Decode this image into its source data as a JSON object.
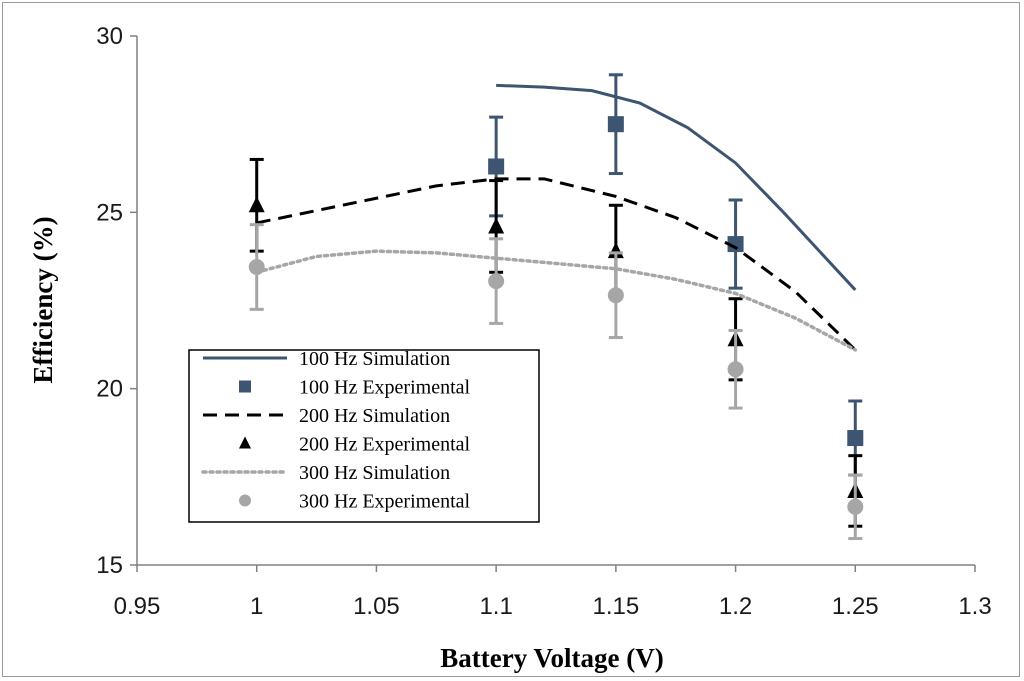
{
  "chart_data": {
    "type": "line",
    "title": "",
    "xlabel": "Battery Voltage (V)",
    "ylabel": "Efficiency (%)",
    "xlim": [
      0.95,
      1.3
    ],
    "ylim": [
      15,
      30
    ],
    "xticks": [
      0.95,
      1,
      1.05,
      1.1,
      1.15,
      1.2,
      1.25,
      1.3
    ],
    "xtick_labels": [
      "0.95",
      "1",
      "1.05",
      "1.1",
      "1.15",
      "1.2",
      "1.25",
      "1.3"
    ],
    "yticks": [
      15,
      20,
      25,
      30
    ],
    "ytick_labels": [
      "15",
      "20",
      "25",
      "30"
    ],
    "grid": false,
    "legend_position": "bottom-left",
    "series": [
      {
        "name": "100 Hz Simulation",
        "kind": "line",
        "style": "solid",
        "color": "#3d5570",
        "x": [
          1.1,
          1.12,
          1.14,
          1.16,
          1.18,
          1.2,
          1.22,
          1.235,
          1.25
        ],
        "y": [
          28.6,
          28.55,
          28.45,
          28.1,
          27.4,
          26.4,
          25.0,
          23.9,
          22.8
        ]
      },
      {
        "name": "100 Hz Experimental",
        "kind": "points",
        "marker": "square",
        "color": "#3d5570",
        "x": [
          1.1,
          1.15,
          1.2,
          1.25
        ],
        "y": [
          26.3,
          27.5,
          24.1,
          18.6
        ],
        "err": [
          1.4,
          1.4,
          1.25,
          1.05
        ]
      },
      {
        "name": "200 Hz Simulation",
        "kind": "line",
        "style": "dashed",
        "color": "#000000",
        "x": [
          1.0,
          1.025,
          1.05,
          1.075,
          1.1,
          1.12,
          1.15,
          1.175,
          1.2,
          1.225,
          1.25
        ],
        "y": [
          24.7,
          25.05,
          25.4,
          25.75,
          25.95,
          25.95,
          25.45,
          24.85,
          24.0,
          22.75,
          21.1
        ]
      },
      {
        "name": "200 Hz Experimental",
        "kind": "points",
        "marker": "triangle",
        "color": "#000000",
        "x": [
          1.0,
          1.1,
          1.15,
          1.2,
          1.25
        ],
        "y": [
          25.2,
          24.6,
          23.9,
          21.4,
          17.1
        ],
        "err": [
          1.3,
          1.3,
          1.3,
          1.15,
          1.0
        ]
      },
      {
        "name": "300 Hz Simulation",
        "kind": "line",
        "style": "dotted",
        "color": "#a6a6a6",
        "x": [
          1.0,
          1.025,
          1.05,
          1.075,
          1.1,
          1.125,
          1.15,
          1.175,
          1.2,
          1.225,
          1.25
        ],
        "y": [
          23.3,
          23.75,
          23.9,
          23.85,
          23.7,
          23.55,
          23.4,
          23.1,
          22.7,
          22.0,
          21.1
        ]
      },
      {
        "name": "300 Hz Experimental",
        "kind": "points",
        "marker": "circle",
        "color": "#a6a6a6",
        "x": [
          1.0,
          1.1,
          1.15,
          1.2,
          1.25
        ],
        "y": [
          23.45,
          23.05,
          22.65,
          20.55,
          16.65
        ],
        "err": [
          1.2,
          1.2,
          1.2,
          1.1,
          0.9
        ]
      }
    ]
  }
}
